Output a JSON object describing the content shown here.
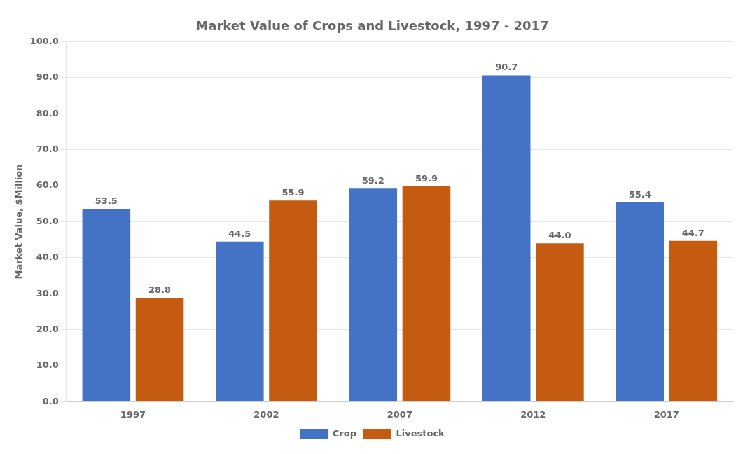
{
  "chart_data": {
    "type": "bar",
    "title": "Market Value of Crops and Livestock, 1997 - 2017",
    "ylabel": "Market Value, $Million",
    "categories": [
      "1997",
      "2002",
      "2007",
      "2012",
      "2017"
    ],
    "series": [
      {
        "name": "Crop",
        "color": "#4472C4",
        "values": [
          53.5,
          44.5,
          59.2,
          90.7,
          55.4
        ]
      },
      {
        "name": "Livestock",
        "color": "#C55A11",
        "values": [
          28.8,
          55.9,
          59.9,
          44.0,
          44.7
        ],
        "value_labels": [
          "28.8",
          "55.9",
          "59.9",
          "44.0",
          "44.7"
        ]
      }
    ],
    "ylim": [
      0,
      100
    ],
    "yticks": [
      {
        "value": 0,
        "label": "0.0"
      },
      {
        "value": 10,
        "label": "10.0"
      },
      {
        "value": 20,
        "label": "20.0"
      },
      {
        "value": 30,
        "label": "30.0"
      },
      {
        "value": 40,
        "label": "40.0"
      },
      {
        "value": 50,
        "label": "50.0"
      },
      {
        "value": 60,
        "label": "60.0"
      },
      {
        "value": 70,
        "label": "70.0"
      },
      {
        "value": 80,
        "label": "80.0"
      },
      {
        "value": 90,
        "label": "90.0"
      },
      {
        "value": 100,
        "label": "100.0"
      }
    ],
    "grid": true,
    "legend": "bottom",
    "data_labels": true
  }
}
